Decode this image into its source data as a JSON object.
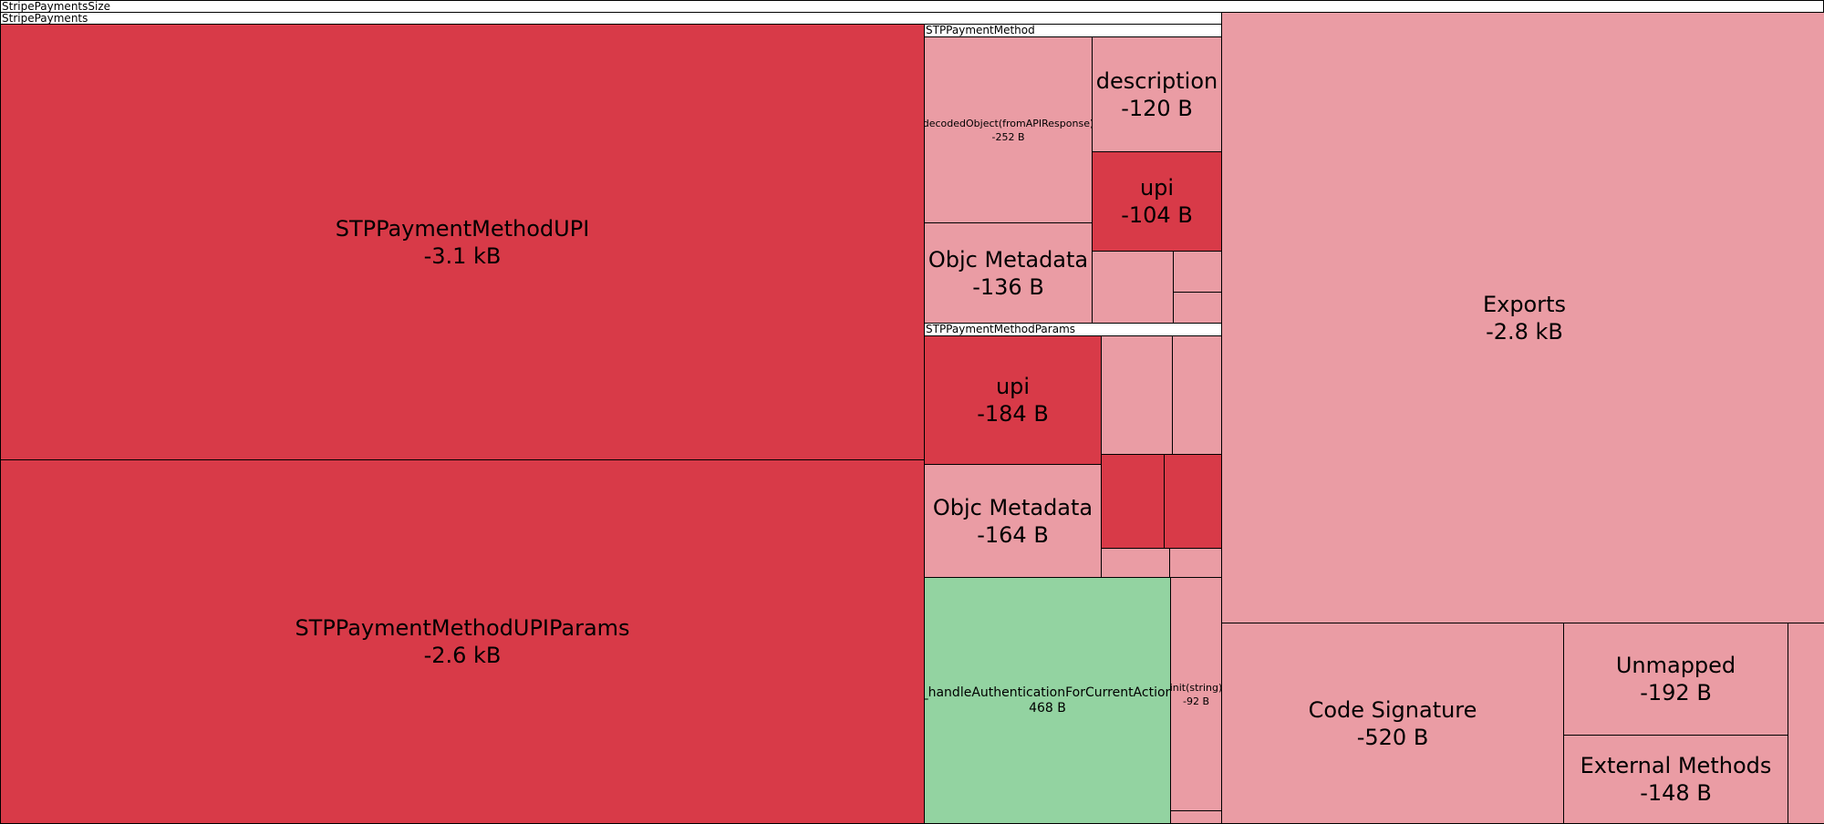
{
  "chart_data": {
    "type": "treemap",
    "root": {
      "name": "StripePaymentsSize",
      "children": [
        {
          "name": "StripePayments",
          "children": [
            {
              "name": "STPPaymentMethodUPI",
              "value_label": "-3.1 kB",
              "color": "#d83a48"
            },
            {
              "name": "STPPaymentMethodUPIParams",
              "value_label": "-2.6 kB",
              "color": "#d83a48"
            },
            {
              "name": "STPPaymentMethod",
              "children": [
                {
                  "name": "decodedObject(fromAPIResponse)",
                  "value_label": "-252 B",
                  "color": "#ea9ca4"
                },
                {
                  "name": "description",
                  "value_label": "-120 B",
                  "color": "#ea9ca4"
                },
                {
                  "name": "upi",
                  "value_label": "-104 B",
                  "color": "#d83a48"
                },
                {
                  "name": "Objc Metadata",
                  "value_label": "-136 B",
                  "color": "#ea9ca4"
                }
              ]
            },
            {
              "name": "STPPaymentMethodParams",
              "children": [
                {
                  "name": "upi",
                  "value_label": "-184 B",
                  "color": "#d83a48"
                },
                {
                  "name": "Objc Metadata",
                  "value_label": "-164 B",
                  "color": "#ea9ca4"
                }
              ]
            },
            {
              "name": "_handleAuthenticationForCurrentAction",
              "value_label": "468 B",
              "color": "#93d3a1"
            },
            {
              "name": "init(string)",
              "value_label": "-92 B",
              "color": "#ea9ca4"
            }
          ]
        },
        {
          "name": "Exports",
          "value_label": "-2.8 kB",
          "color": "#ea9ca4"
        },
        {
          "name": "Code Signature",
          "value_label": "-520 B",
          "color": "#ea9ca4"
        },
        {
          "name": "Unmapped",
          "value_label": "-192 B",
          "color": "#ea9ca4"
        },
        {
          "name": "External Methods",
          "value_label": "-148 B",
          "color": "#ea9ca4"
        }
      ]
    },
    "colors": {
      "size_decrease_large": "#d83a48",
      "size_decrease_small": "#ea9ca4",
      "size_increase": "#93d3a1"
    }
  }
}
